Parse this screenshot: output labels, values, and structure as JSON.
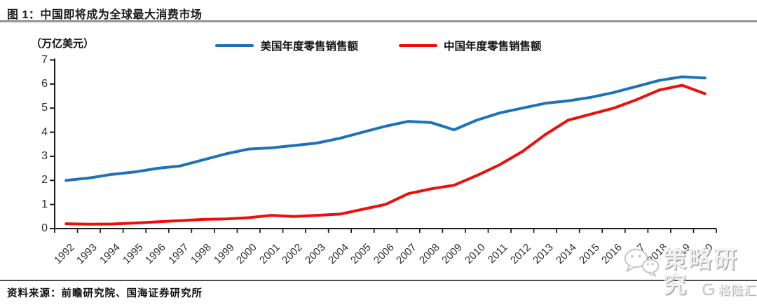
{
  "header": {
    "title": "图 1：中国即将成为全球最大消费市场"
  },
  "chart_data": {
    "type": "line",
    "unit_label": "（万亿美元）",
    "categories": [
      "1992",
      "1993",
      "1994",
      "1995",
      "1996",
      "1997",
      "1998",
      "1999",
      "2000",
      "2001",
      "2002",
      "2003",
      "2004",
      "2005",
      "2006",
      "2007",
      "2008",
      "2009",
      "2010",
      "2011",
      "2012",
      "2013",
      "2014",
      "2015",
      "2016",
      "2017",
      "2018",
      "2019",
      "2020"
    ],
    "series": [
      {
        "name": "美国年度零售销售额",
        "color": "#1e73b8",
        "values": [
          2.0,
          2.1,
          2.25,
          2.35,
          2.5,
          2.6,
          2.85,
          3.1,
          3.3,
          3.35,
          3.45,
          3.55,
          3.75,
          4.0,
          4.25,
          4.45,
          4.4,
          4.1,
          4.5,
          4.8,
          5.0,
          5.2,
          5.3,
          5.45,
          5.65,
          5.9,
          6.15,
          6.3,
          6.25
        ]
      },
      {
        "name": "中国年度零售销售额",
        "color": "#ec100c",
        "values": [
          0.2,
          0.18,
          0.19,
          0.23,
          0.28,
          0.33,
          0.38,
          0.4,
          0.45,
          0.55,
          0.5,
          0.55,
          0.6,
          0.8,
          1.0,
          1.45,
          1.65,
          1.8,
          2.2,
          2.65,
          3.2,
          3.9,
          4.5,
          4.75,
          5.0,
          5.35,
          5.75,
          5.95,
          5.6
        ]
      }
    ],
    "ylim": [
      0,
      7
    ],
    "ytick_step": 1,
    "grid": false,
    "legend_position": "top-center",
    "axis_color": "#1a1a1a"
  },
  "footer": {
    "source": "资料来源：前瞻研究院、国海证券研究所"
  },
  "watermark": {
    "wechat_label": "策略研究",
    "wechat_icon": "wechat-icon",
    "brand": "格隆汇",
    "brand_icon": "gelonghui-logo"
  }
}
